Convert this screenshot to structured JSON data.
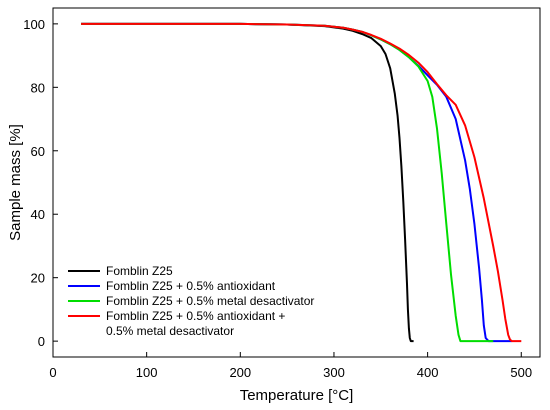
{
  "chart_data": {
    "type": "line",
    "title": "",
    "xlabel": "Temperature [°C]",
    "ylabel": "Sample mass [%]",
    "xlim": [
      0,
      520
    ],
    "ylim": [
      -5,
      105
    ],
    "xticks": [
      0,
      100,
      200,
      300,
      400,
      500
    ],
    "yticks": [
      0,
      20,
      40,
      60,
      80,
      100
    ],
    "grid": false,
    "legend_position": "bottom-left",
    "series": [
      {
        "name": "Fomblin Z25",
        "color": "#000000",
        "x": [
          30,
          200,
          250,
          290,
          310,
          320,
          330,
          340,
          350,
          355,
          360,
          365,
          368,
          370,
          372,
          374,
          376,
          378,
          379,
          380,
          381,
          382,
          385
        ],
        "y": [
          100,
          100,
          99.8,
          99.3,
          98.5,
          97.8,
          96.8,
          95.5,
          93,
          90.5,
          86,
          78,
          71,
          64,
          55,
          44,
          32,
          18,
          10,
          4,
          1,
          0,
          0
        ]
      },
      {
        "name": "Fomblin Z25 + 0.5% antioxidant",
        "color": "#0000ff",
        "x": [
          30,
          200,
          250,
          290,
          310,
          320,
          330,
          340,
          350,
          360,
          370,
          380,
          390,
          400,
          410,
          420,
          430,
          440,
          445,
          450,
          455,
          458,
          460,
          462,
          465,
          490
        ],
        "y": [
          100,
          100,
          99.8,
          99.4,
          98.8,
          98.2,
          97.5,
          96.4,
          95.1,
          93.6,
          91.8,
          89.5,
          86.8,
          83.8,
          80.8,
          77,
          70,
          57,
          48,
          37,
          23,
          13,
          5,
          1,
          0,
          0
        ]
      },
      {
        "name": "Fomblin Z25 + 0.5% metal desactivator",
        "color": "#00dd00",
        "x": [
          30,
          200,
          250,
          290,
          310,
          320,
          330,
          340,
          350,
          360,
          370,
          380,
          390,
          400,
          405,
          410,
          415,
          420,
          425,
          430,
          433,
          435,
          440,
          470
        ],
        "y": [
          100,
          100,
          99.8,
          99.4,
          98.8,
          98.2,
          97.5,
          96.4,
          95.1,
          93.6,
          91.8,
          89.5,
          86.6,
          82,
          77,
          67,
          53,
          37,
          21,
          8,
          2,
          0,
          0,
          0
        ]
      },
      {
        "name": "Fomblin Z25 + 0.5% antioxidant + 0.5% metal desactivator",
        "color": "#ff0000",
        "x": [
          30,
          200,
          250,
          290,
          310,
          320,
          330,
          340,
          350,
          360,
          370,
          380,
          390,
          400,
          410,
          420,
          430,
          440,
          450,
          460,
          470,
          475,
          480,
          483,
          486,
          488,
          490,
          500
        ],
        "y": [
          100,
          100,
          99.8,
          99.4,
          98.8,
          98.2,
          97.5,
          96.5,
          95.3,
          93.8,
          92.2,
          90.2,
          87.8,
          84.8,
          81,
          77.5,
          74.5,
          68,
          58,
          45,
          30,
          22,
          13,
          7,
          2,
          0.5,
          0,
          0
        ]
      }
    ],
    "legend": {
      "lines": [
        {
          "series": 0,
          "text": "Fomblin Z25"
        },
        {
          "series": 1,
          "text": "Fomblin Z25 + 0.5% antioxidant"
        },
        {
          "series": 2,
          "text": "Fomblin Z25 + 0.5% metal desactivator"
        },
        {
          "series": 3,
          "text": "Fomblin Z25 + 0.5% antioxidant +"
        },
        {
          "series": null,
          "text": "0.5% metal desactivator"
        }
      ]
    }
  }
}
